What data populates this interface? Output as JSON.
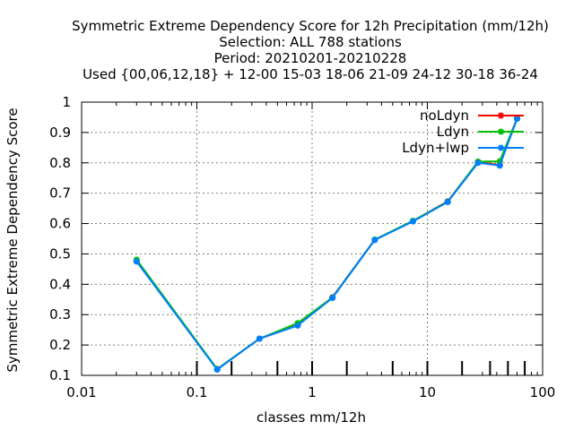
{
  "chart_data": {
    "type": "line",
    "title_lines": [
      "Symmetric Extreme Dependency Score  for 12h Precipitation (mm/12h)",
      "Selection: ALL    788 stations",
      "Period: 20210201-20210228",
      "Used {00,06,12,18} + 12-00 15-03 18-06 21-09 24-12 30-18 36-24"
    ],
    "xlabel": "classes mm/12h",
    "ylabel": "Symmetric Extreme Dependency Score",
    "x_scale": "log",
    "xlim": [
      0.01,
      100
    ],
    "ylim": [
      0.1,
      1.0
    ],
    "x_ticks": [
      0.01,
      0.1,
      1,
      10,
      100
    ],
    "x_tick_labels": [
      "0.01",
      "0.1",
      "1",
      "10",
      "100"
    ],
    "y_ticks": [
      0.1,
      0.2,
      0.3,
      0.4,
      0.5,
      0.6,
      0.7,
      0.8,
      0.9,
      1.0
    ],
    "y_tick_labels": [
      "0.1",
      "0.2",
      "0.3",
      "0.4",
      "0.5",
      "0.6",
      "0.7",
      "0.8",
      "0.9",
      "1"
    ],
    "grid": true,
    "legend_position": "top-right",
    "class_thresholds": [
      0.1,
      0.2,
      0.5,
      1,
      2,
      5,
      10,
      20,
      35,
      50,
      70
    ],
    "series": [
      {
        "name": "noLdyn",
        "color": "#ff0000",
        "x": [
          0.03,
          0.15,
          0.35,
          0.75,
          1.5,
          3.5,
          7.5,
          15,
          27.5,
          42.5,
          60
        ],
        "y": [
          0.477,
          0.12,
          0.221,
          0.265,
          0.357,
          0.547,
          0.608,
          0.673,
          0.803,
          0.793,
          0.948
        ]
      },
      {
        "name": "Ldyn",
        "color": "#00c000",
        "x": [
          0.03,
          0.15,
          0.35,
          0.75,
          1.5,
          3.5,
          7.5,
          15,
          27.5,
          42.5,
          60
        ],
        "y": [
          0.481,
          0.121,
          0.221,
          0.272,
          0.356,
          0.547,
          0.609,
          0.672,
          0.804,
          0.805,
          0.946
        ]
      },
      {
        "name": "Ldyn+lwp",
        "color": "#0080ff",
        "x": [
          0.03,
          0.15,
          0.35,
          0.75,
          1.5,
          3.5,
          7.5,
          15,
          27.5,
          42.5,
          60
        ],
        "y": [
          0.475,
          0.119,
          0.221,
          0.264,
          0.355,
          0.546,
          0.607,
          0.671,
          0.8,
          0.791,
          0.945
        ]
      }
    ]
  }
}
